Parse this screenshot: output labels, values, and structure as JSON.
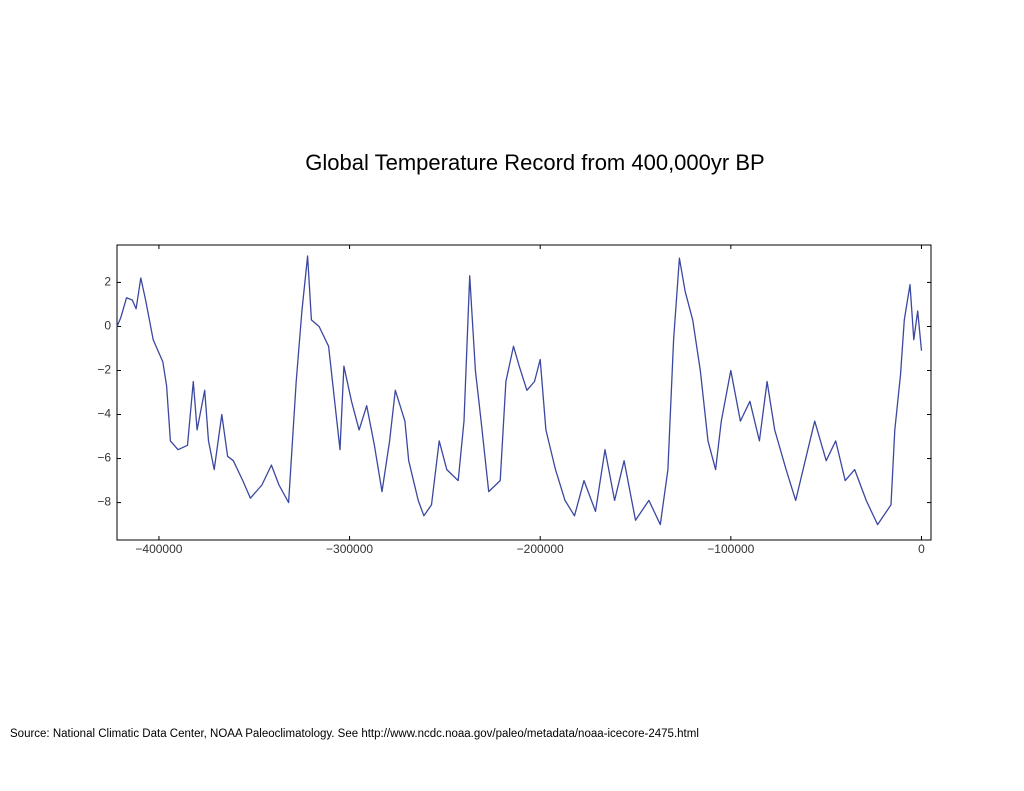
{
  "chart_data": {
    "type": "line",
    "title": "Global Temperature Record from 400,000yr BP",
    "source": "Source: National Climatic Data Center, NOAA Paleoclimatology.   See  http://www.ncdc.noaa.gov/paleo/metadata/noaa-icecore-2475.html",
    "xlim": [
      -422000,
      5000
    ],
    "ylim": [
      -9.7,
      3.7
    ],
    "xticks": [
      {
        "value": -400000,
        "label": "−400000"
      },
      {
        "value": -300000,
        "label": "−300000"
      },
      {
        "value": -200000,
        "label": "−200000"
      },
      {
        "value": -100000,
        "label": "−100000"
      },
      0
    ],
    "yticks": [
      2,
      0,
      {
        "value": -2,
        "label": "−2"
      },
      {
        "value": -4,
        "label": "−4"
      },
      {
        "value": -6,
        "label": "−6"
      },
      {
        "value": -8,
        "label": "−8"
      }
    ],
    "grid": false,
    "series": [
      {
        "color": "#3b48a0",
        "x": [
          -422000,
          -420000,
          -417000,
          -414000,
          -412000,
          -409500,
          -407000,
          -403000,
          -398000,
          -396000,
          -394000,
          -390000,
          -385000,
          -382000,
          -380000,
          -376000,
          -374000,
          -371000,
          -367000,
          -364000,
          -361000,
          -356000,
          -352000,
          -346000,
          -341000,
          -337000,
          -332000,
          -328000,
          -325000,
          -322000,
          -320000,
          -316000,
          -311000,
          -305000,
          -303000,
          -299000,
          -295000,
          -291000,
          -287000,
          -283000,
          -279000,
          -276000,
          -271000,
          -269000,
          -264000,
          -261000,
          -257000,
          -253000,
          -249000,
          -243000,
          -240000,
          -237000,
          -234000,
          -231000,
          -227000,
          -221000,
          -218000,
          -214000,
          -211000,
          -207000,
          -203000,
          -200000,
          -197000,
          -192000,
          -187000,
          -182000,
          -177000,
          -171000,
          -166000,
          -161000,
          -156000,
          -150000,
          -143000,
          -137000,
          -133000,
          -130000,
          -127000,
          -124000,
          -120000,
          -116000,
          -112000,
          -108000,
          -105000,
          -100000,
          -95000,
          -90000,
          -85000,
          -81000,
          -77000,
          -71000,
          -66000,
          -61000,
          -56000,
          -50000,
          -45000,
          -40000,
          -35000,
          -29000,
          -23000,
          -16000,
          -14000,
          -11000,
          -9000,
          -6000,
          -4000,
          -2000,
          0
        ],
        "values": [
          0.0,
          0.4,
          1.3,
          1.2,
          0.8,
          2.2,
          1.2,
          -0.6,
          -1.6,
          -2.7,
          -5.2,
          -5.6,
          -5.4,
          -2.5,
          -4.7,
          -2.9,
          -5.2,
          -6.5,
          -4.0,
          -5.9,
          -6.1,
          -7.0,
          -7.8,
          -7.2,
          -6.3,
          -7.2,
          -8.0,
          -2.5,
          0.7,
          3.2,
          0.3,
          0.0,
          -0.9,
          -5.6,
          -1.8,
          -3.4,
          -4.7,
          -3.6,
          -5.4,
          -7.5,
          -5.2,
          -2.9,
          -4.3,
          -6.1,
          -7.9,
          -8.6,
          -8.1,
          -5.2,
          -6.5,
          -7.0,
          -4.3,
          2.3,
          -2.0,
          -4.3,
          -7.5,
          -7.0,
          -2.5,
          -0.9,
          -1.8,
          -2.9,
          -2.5,
          -1.5,
          -4.7,
          -6.5,
          -7.9,
          -8.6,
          -7.0,
          -8.4,
          -5.6,
          -7.9,
          -6.1,
          -8.8,
          -7.9,
          -9.0,
          -6.5,
          -0.6,
          3.1,
          1.6,
          0.3,
          -2.0,
          -5.2,
          -6.5,
          -4.3,
          -2.0,
          -4.3,
          -3.4,
          -5.2,
          -2.5,
          -4.7,
          -6.5,
          -7.9,
          -6.1,
          -4.3,
          -6.1,
          -5.2,
          -7.0,
          -6.5,
          -7.9,
          -9.0,
          -8.1,
          -4.7,
          -2.2,
          0.3,
          1.9,
          -0.6,
          0.7,
          -1.1
        ]
      }
    ]
  }
}
